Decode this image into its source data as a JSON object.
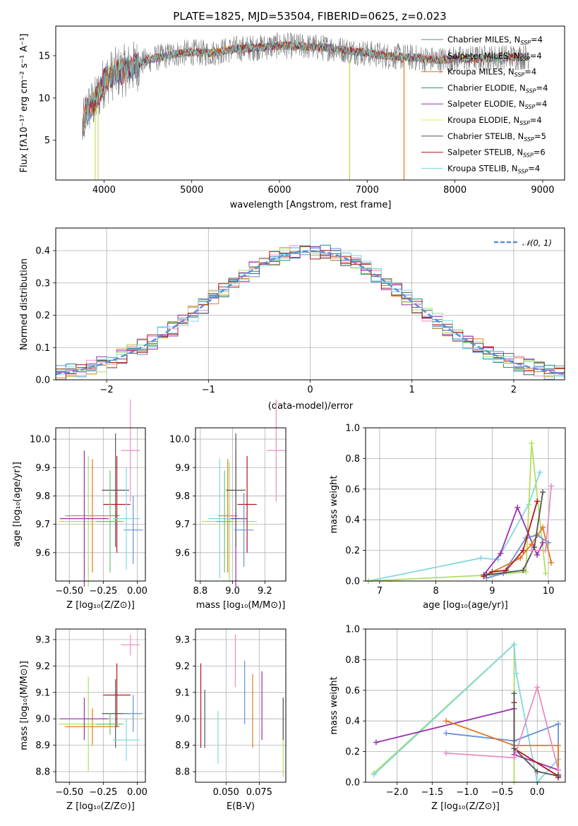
{
  "colors": [
    "#6a8fd8",
    "#e68a3a",
    "#8a8a8a",
    "#e88bc4",
    "#a0a030",
    "#90d8e0",
    "#9a40b8",
    "#b0e060",
    "#444444",
    "#b01818",
    "#80e0e0",
    "#e0e040"
  ],
  "chart_data": [
    {
      "type": "line",
      "title": "PLATE=1825, MJD=53504, FIBERID=0625, z=0.023",
      "xlabel": "wavelength [Angstrom, rest frame]",
      "ylabel": "Flux [fλ10⁻¹⁷ erg cm⁻² s⁻¹ A⁻¹]",
      "xlim": [
        3450,
        9250
      ],
      "ylim": [
        0.3,
        18.5
      ],
      "xticks": [
        4000,
        5000,
        6000,
        7000,
        8000,
        9000
      ],
      "yticks": [
        5,
        10,
        15
      ],
      "grid": false,
      "legend_position": "top-right",
      "series": [
        {
          "name": "Chabrier MILES, N_SSP=4",
          "color": "#5b7fd4"
        },
        {
          "name": "Salpeter MILES, N_SSP=4",
          "color": "#e88dc4"
        },
        {
          "name": "Kroupa MILES, N_SSP=4",
          "color": "#e07820"
        },
        {
          "name": "Chabrier ELODIE, N_SSP=4",
          "color": "#1b8a8a"
        },
        {
          "name": "Salpeter ELODIE, N_SSP=4",
          "color": "#9a30b0"
        },
        {
          "name": "Kroupa ELODIE, N_SSP=4",
          "color": "#e8e050"
        },
        {
          "name": "Chabrier STELIB, N_SSP=5",
          "color": "#555555"
        },
        {
          "name": "Salpeter STELIB, N_SSP=6",
          "color": "#b01818"
        },
        {
          "name": "Kroupa STELIB, N_SSP=4",
          "color": "#70dada"
        }
      ],
      "continuum": {
        "x": [
          3750,
          3800,
          3900,
          4000,
          4100,
          4300,
          4500,
          4800,
          5000,
          5200,
          5500,
          5800,
          6000,
          6300,
          6600,
          7000,
          7200,
          7500,
          7800,
          8000,
          8300,
          8600,
          8850
        ],
        "y": [
          6.0,
          8.5,
          9.5,
          12.0,
          12.8,
          13.5,
          14.5,
          15.2,
          15.4,
          15.3,
          15.8,
          16.0,
          16.2,
          16.1,
          15.9,
          15.3,
          15.0,
          14.8,
          14.5,
          14.6,
          14.7,
          14.8,
          14.9
        ]
      }
    },
    {
      "type": "histogram",
      "title": "",
      "xlabel": "(data-model)/error",
      "ylabel": "Normed distribution",
      "xlim": [
        -2.5,
        2.5
      ],
      "ylim": [
        0,
        0.47
      ],
      "xticks": [
        -2,
        -1,
        0,
        1,
        2
      ],
      "yticks": [
        0.0,
        0.1,
        0.2,
        0.3,
        0.4
      ],
      "grid": true,
      "legend": [
        {
          "label": "𝒩(0, 1)",
          "style": "dashed",
          "color": "#5b8fd8"
        }
      ],
      "gaussian": {
        "mean": 0,
        "sigma": 1
      },
      "bin_width": 0.1
    },
    {
      "type": "scatter",
      "title": "",
      "xlabel": "Z [log₁₀(Z/Z⊙)]",
      "ylabel": "age  [log₁₀(age/yr)]",
      "xlim": [
        -0.6,
        0.06
      ],
      "ylim": [
        9.5,
        10.04
      ],
      "xticks": [
        -0.5,
        -0.25,
        0.0
      ],
      "xticklabels": [
        "−0.50",
        "−0.25",
        "0.00"
      ],
      "yticks": [
        9.6,
        9.7,
        9.8,
        9.9,
        10.0
      ],
      "errorbars": [
        {
          "x": -0.33,
          "xerr": 0.2,
          "y": 9.73,
          "yerr": 0.2,
          "color": "#e07820"
        },
        {
          "x": -0.36,
          "xerr": 0.22,
          "y": 9.71,
          "yerr": 0.23,
          "color": "#b0e060"
        },
        {
          "x": -0.39,
          "xerr": 0.18,
          "y": 9.72,
          "yerr": 0.24,
          "color": "#9a30b0"
        },
        {
          "x": -0.15,
          "xerr": 0.1,
          "y": 9.77,
          "yerr": 0.17,
          "color": "#b01818"
        },
        {
          "x": -0.16,
          "xerr": 0.1,
          "y": 9.82,
          "yerr": 0.2,
          "color": "#555555"
        },
        {
          "x": -0.03,
          "xerr": 0.07,
          "y": 9.68,
          "yerr": 0.12,
          "color": "#6a8fd8"
        },
        {
          "x": -0.05,
          "xerr": 0.07,
          "y": 9.96,
          "yerr": 0.18,
          "color": "#e88dc4"
        },
        {
          "x": -0.08,
          "xerr": 0.1,
          "y": 9.72,
          "yerr": 0.18,
          "color": "#80d8e0"
        },
        {
          "x": -0.2,
          "xerr": 0.1,
          "y": 9.71,
          "yerr": 0.18,
          "color": "#70c070"
        }
      ]
    },
    {
      "type": "scatter",
      "title": "",
      "xlabel": "mass [log₁₀(M/M⊙)]",
      "ylabel": "",
      "xlim": [
        8.77,
        9.33
      ],
      "ylim": [
        9.5,
        10.04
      ],
      "xticks": [
        8.8,
        9.0,
        9.2
      ],
      "xticklabels": [
        "8.8",
        "9.0",
        "9.2"
      ],
      "yticks": [
        9.6,
        9.7,
        9.8,
        9.9,
        10.0
      ],
      "errorbars": [
        {
          "x": 8.97,
          "xerr": 0.06,
          "y": 9.73,
          "yerr": 0.2,
          "color": "#e07820"
        },
        {
          "x": 8.98,
          "xerr": 0.17,
          "y": 9.71,
          "yerr": 0.21,
          "color": "#b0e060"
        },
        {
          "x": 9.02,
          "xerr": 0.07,
          "y": 9.72,
          "yerr": 0.24,
          "color": "#9a30b0"
        },
        {
          "x": 9.09,
          "xerr": 0.06,
          "y": 9.77,
          "yerr": 0.17,
          "color": "#b01818"
        },
        {
          "x": 9.02,
          "xerr": 0.06,
          "y": 9.82,
          "yerr": 0.2,
          "color": "#555555"
        },
        {
          "x": 9.07,
          "xerr": 0.06,
          "y": 9.68,
          "yerr": 0.13,
          "color": "#6a8fd8"
        },
        {
          "x": 9.27,
          "xerr": 0.06,
          "y": 9.96,
          "yerr": 0.18,
          "color": "#e88dc4"
        },
        {
          "x": 8.92,
          "xerr": 0.07,
          "y": 9.72,
          "yerr": 0.21,
          "color": "#80d8e0"
        },
        {
          "x": 8.95,
          "xerr": 0.05,
          "y": 9.71,
          "yerr": 0.18,
          "color": "#70c070"
        }
      ]
    },
    {
      "type": "line",
      "title": "",
      "xlabel": "age  [log₁₀(age/yr)]",
      "ylabel": "mass weight",
      "xlim": [
        6.75,
        10.3
      ],
      "ylim": [
        0,
        1.0
      ],
      "xticks": [
        7,
        8,
        9,
        10
      ],
      "yticks": [
        0.0,
        0.2,
        0.4,
        0.6,
        0.8,
        1.0
      ],
      "grid": true,
      "series": [
        {
          "color": "#80d8e0",
          "x": [
            6.8,
            8.8,
            9.1,
            9.65,
            9.85
          ],
          "y": [
            0.0,
            0.15,
            0.14,
            0.5,
            0.71
          ]
        },
        {
          "color": "#b0e060",
          "x": [
            6.8,
            9.0,
            9.6,
            9.7,
            9.95
          ],
          "y": [
            0.0,
            0.04,
            0.06,
            0.9,
            0.05
          ]
        },
        {
          "color": "#9a30b0",
          "x": [
            8.85,
            9.15,
            9.45,
            9.8,
            9.9
          ],
          "y": [
            0.04,
            0.18,
            0.48,
            0.17,
            0.25
          ]
        },
        {
          "color": "#6a8fd8",
          "x": [
            8.9,
            9.2,
            9.6,
            9.8,
            10.0
          ],
          "y": [
            0.02,
            0.05,
            0.28,
            0.3,
            0.25
          ]
        },
        {
          "color": "#e07820",
          "x": [
            8.9,
            9.5,
            9.7,
            9.9,
            10.05
          ],
          "y": [
            0.04,
            0.15,
            0.24,
            0.35,
            0.12
          ]
        },
        {
          "color": "#b01818",
          "x": [
            8.85,
            9.0,
            9.25,
            9.55,
            9.8
          ],
          "y": [
            0.03,
            0.06,
            0.07,
            0.2,
            0.52
          ]
        },
        {
          "color": "#555555",
          "x": [
            8.9,
            9.55,
            9.75,
            9.9
          ],
          "y": [
            0.04,
            0.07,
            0.22,
            0.58
          ]
        },
        {
          "color": "#e88dc4",
          "x": [
            9.7,
            9.95,
            10.05
          ],
          "y": [
            0.2,
            0.2,
            0.62
          ]
        }
      ]
    },
    {
      "type": "scatter",
      "title": "",
      "xlabel": "Z [log₁₀(Z/Z⊙)]",
      "ylabel": "mass [log₁₀(M/M⊙)]",
      "xlim": [
        -0.6,
        0.06
      ],
      "ylim": [
        8.76,
        9.34
      ],
      "xticks": [
        -0.5,
        -0.25,
        0.0
      ],
      "xticklabels": [
        "−0.50",
        "−0.25",
        "0.00"
      ],
      "yticks": [
        8.8,
        8.9,
        9.0,
        9.1,
        9.2,
        9.3
      ],
      "errorbars": [
        {
          "x": -0.33,
          "xerr": 0.2,
          "y": 8.97,
          "yerr": 0.07,
          "color": "#e07820"
        },
        {
          "x": -0.36,
          "xerr": 0.22,
          "y": 8.98,
          "yerr": 0.18,
          "color": "#b0e060"
        },
        {
          "x": -0.39,
          "xerr": 0.18,
          "y": 9.0,
          "yerr": 0.08,
          "color": "#9a30b0"
        },
        {
          "x": -0.15,
          "xerr": 0.1,
          "y": 9.09,
          "yerr": 0.12,
          "color": "#b01818"
        },
        {
          "x": -0.16,
          "xerr": 0.1,
          "y": 9.02,
          "yerr": 0.13,
          "color": "#555555"
        },
        {
          "x": -0.03,
          "xerr": 0.07,
          "y": 9.02,
          "yerr": 0.07,
          "color": "#6a8fd8"
        },
        {
          "x": -0.05,
          "xerr": 0.07,
          "y": 9.28,
          "yerr": 0.04,
          "color": "#e88dc4"
        },
        {
          "x": -0.08,
          "xerr": 0.1,
          "y": 8.92,
          "yerr": 0.08,
          "color": "#80d8e0"
        },
        {
          "x": -0.2,
          "xerr": 0.1,
          "y": 8.98,
          "yerr": 0.04,
          "color": "#70c070"
        }
      ]
    },
    {
      "type": "scatter",
      "title": "",
      "xlabel": "E(B-V)",
      "ylabel": "",
      "xlim": [
        0.027,
        0.095
      ],
      "ylim": [
        8.76,
        9.34
      ],
      "xticks": [
        0.05,
        0.075
      ],
      "xticklabels": [
        "0.050",
        "0.075"
      ],
      "yticks": [
        8.8,
        8.9,
        9.0,
        9.1,
        9.2,
        9.3
      ],
      "errorbars": [
        {
          "x": 0.031,
          "y": 9.05,
          "yerr": 0.16,
          "color": "#b01818"
        },
        {
          "x": 0.034,
          "y": 9.0,
          "yerr": 0.11,
          "color": "#555555"
        },
        {
          "x": 0.044,
          "y": 8.93,
          "yerr": 0.1,
          "color": "#80d8e0"
        },
        {
          "x": 0.057,
          "y": 9.22,
          "yerr": 0.1,
          "color": "#e88dc4"
        },
        {
          "x": 0.064,
          "y": 9.1,
          "yerr": 0.12,
          "color": "#6a8fd8"
        },
        {
          "x": 0.07,
          "y": 9.03,
          "yerr": 0.14,
          "color": "#e07820"
        },
        {
          "x": 0.077,
          "y": 9.05,
          "yerr": 0.13,
          "color": "#9a30b0"
        },
        {
          "x": 0.093,
          "y": 8.93,
          "yerr": 0.15,
          "color": "#b0e060"
        },
        {
          "x": 0.093,
          "y": 9.0,
          "yerr": 0.08,
          "color": "#555555"
        }
      ]
    },
    {
      "type": "line",
      "title": "",
      "xlabel": "Z [log₁₀(Z/Z⊙)]",
      "ylabel": "mass weight",
      "xlim": [
        -2.45,
        0.4
      ],
      "ylim": [
        0,
        1.0
      ],
      "xticks": [
        -2.0,
        -1.5,
        -1.0,
        -0.5,
        0.0
      ],
      "xticklabels": [
        "−2.0",
        "−1.5",
        "−1.0",
        "−0.5",
        "0.0"
      ],
      "yticks": [
        0.0,
        0.2,
        0.4,
        0.6,
        0.8,
        1.0
      ],
      "grid": true,
      "series": [
        {
          "color": "#b0e060",
          "x": [
            -2.33,
            -0.33,
            -0.33
          ],
          "y": [
            0.06,
            0.9,
            0.0
          ]
        },
        {
          "color": "#80d8e0",
          "x": [
            -2.33,
            -0.33,
            -0.3,
            0.0,
            0.3
          ],
          "y": [
            0.05,
            0.9,
            0.71,
            0.0,
            0.15
          ]
        },
        {
          "color": "#9a30b0",
          "x": [
            -2.3,
            -0.33,
            -0.33,
            0.3,
            0.3
          ],
          "y": [
            0.26,
            0.48,
            0.18,
            0.08,
            0.05
          ]
        },
        {
          "color": "#6a8fd8",
          "x": [
            -1.3,
            -0.33,
            0.3,
            0.3
          ],
          "y": [
            0.32,
            0.27,
            0.38,
            0.05
          ]
        },
        {
          "color": "#e07820",
          "x": [
            -1.3,
            -0.33,
            0.3,
            0.3
          ],
          "y": [
            0.4,
            0.24,
            0.24,
            0.04
          ]
        },
        {
          "color": "#b01818",
          "x": [
            -0.33,
            -0.33,
            0.3,
            0.3
          ],
          "y": [
            0.52,
            0.22,
            0.04,
            0.03
          ]
        },
        {
          "color": "#555555",
          "x": [
            -0.33,
            -0.33,
            0.0,
            0.3
          ],
          "y": [
            0.58,
            0.22,
            0.07,
            0.04
          ]
        },
        {
          "color": "#e88dc4",
          "x": [
            -1.3,
            -0.33,
            0.0,
            0.3
          ],
          "y": [
            0.19,
            0.16,
            0.62,
            0.08
          ]
        }
      ]
    }
  ]
}
